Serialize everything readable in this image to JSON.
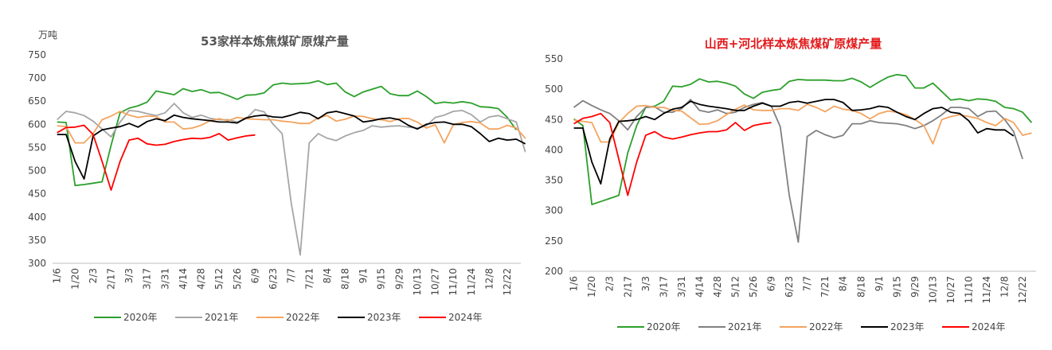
{
  "chart_data": [
    {
      "type": "line",
      "title": "53家样本炼焦煤矿原煤产量",
      "unit_label": "万吨",
      "xlabel": "",
      "ylabel": "",
      "ylim": [
        300,
        750
      ],
      "y_ticks": [
        300,
        350,
        400,
        450,
        500,
        550,
        600,
        650,
        700,
        750
      ],
      "x_ticks": [
        "1/6",
        "1/20",
        "2/3",
        "2/17",
        "3/3",
        "3/17",
        "3/31",
        "4/14",
        "4/28",
        "5/12",
        "5/26",
        "6/9",
        "6/23",
        "7/7",
        "7/21",
        "8/4",
        "8/18",
        "9/1",
        "9/15",
        "9/29",
        "10/13",
        "10/27",
        "11/10",
        "11/24",
        "12/8",
        "12/22"
      ],
      "grid": false,
      "legend_position": "bottom",
      "series": [
        {
          "name": "2020年",
          "color": "#2ca02c",
          "values": [
            605,
            604,
            468,
            470,
            473,
            476,
            555,
            625,
            635,
            640,
            648,
            672,
            668,
            664,
            677,
            671,
            675,
            668,
            669,
            662,
            654,
            663,
            664,
            668,
            685,
            689,
            687,
            688,
            689,
            694,
            686,
            689,
            670,
            660,
            670,
            676,
            682,
            666,
            662,
            662,
            672,
            660,
            645,
            648,
            646,
            649,
            646,
            638,
            637,
            634,
            615,
            588
          ]
        },
        {
          "name": "2021年",
          "color": "#a6a6a6",
          "values": [
            610,
            628,
            625,
            619,
            607,
            590,
            573,
            605,
            630,
            628,
            623,
            619,
            625,
            645,
            625,
            615,
            620,
            613,
            610,
            610,
            605,
            612,
            632,
            627,
            600,
            580,
            430,
            318,
            560,
            580,
            570,
            565,
            575,
            582,
            587,
            597,
            594,
            596,
            597,
            594,
            592,
            597,
            615,
            620,
            628,
            630,
            621,
            605,
            616,
            619,
            612,
            605,
            540
          ]
        },
        {
          "name": "2022年",
          "color": "#f4a460",
          "values": [
            597,
            595,
            560,
            560,
            580,
            610,
            618,
            628,
            620,
            615,
            618,
            617,
            605,
            605,
            590,
            592,
            598,
            608,
            612,
            608,
            615,
            612,
            611,
            610,
            610,
            607,
            605,
            602,
            602,
            614,
            619,
            607,
            611,
            618,
            617,
            612,
            610,
            606,
            612,
            613,
            605,
            592,
            599,
            560,
            599,
            604,
            606,
            603,
            590,
            590,
            598,
            592,
            570,
            572
          ]
        },
        {
          "name": "2023年",
          "color": "#000000",
          "values": [
            578,
            578,
            520,
            482,
            575,
            588,
            592,
            595,
            602,
            594,
            606,
            612,
            608,
            620,
            615,
            612,
            610,
            608,
            605,
            605,
            603,
            614,
            618,
            620,
            616,
            615,
            620,
            626,
            623,
            612,
            625,
            628,
            623,
            618,
            605,
            608,
            612,
            614,
            610,
            598,
            590,
            600,
            604,
            605,
            600,
            600,
            595,
            580,
            563,
            570,
            566,
            568,
            558
          ]
        },
        {
          "name": "2024年",
          "color": "#ff0000",
          "values": [
            582,
            593,
            594,
            598,
            578,
            520,
            458,
            520,
            566,
            570,
            558,
            555,
            557,
            563,
            567,
            570,
            569,
            572,
            580,
            566,
            571,
            575,
            577
          ]
        }
      ]
    },
    {
      "type": "line",
      "title": "山西+河北样本炼焦煤矿原煤产量",
      "unit_label": "",
      "xlabel": "",
      "ylabel": "",
      "ylim": [
        200,
        550
      ],
      "y_ticks": [
        200,
        250,
        300,
        350,
        400,
        450,
        500,
        550
      ],
      "x_ticks": [
        "1/6",
        "1/20",
        "2/3",
        "2/17",
        "3/3",
        "3/17",
        "3/31",
        "4/14",
        "4/28",
        "5/12",
        "5/26",
        "6/9",
        "6/23",
        "7/7",
        "7/21",
        "8/4",
        "8/18",
        "9/1",
        "9/15",
        "9/29",
        "10/13",
        "10/27",
        "11/10",
        "11/24",
        "12/8",
        "12/22"
      ],
      "grid": false,
      "legend_position": "bottom",
      "series": [
        {
          "name": "2020年",
          "color": "#2ca02c",
          "values": [
            451,
            440,
            310,
            315,
            320,
            325,
            395,
            440,
            470,
            472,
            480,
            505,
            504,
            508,
            517,
            512,
            513,
            510,
            505,
            492,
            485,
            495,
            498,
            500,
            513,
            516,
            515,
            515,
            515,
            514,
            514,
            518,
            512,
            503,
            512,
            520,
            524,
            522,
            502,
            502,
            510,
            496,
            482,
            484,
            481,
            484,
            483,
            480,
            470,
            468,
            462,
            445
          ]
        },
        {
          "name": "2021年",
          "color": "#808080",
          "values": [
            470,
            481,
            473,
            466,
            460,
            448,
            433,
            455,
            470,
            471,
            462,
            462,
            468,
            483,
            465,
            462,
            466,
            460,
            462,
            470,
            475,
            478,
            472,
            438,
            325,
            248,
            422,
            432,
            425,
            420,
            424,
            443,
            443,
            448,
            445,
            444,
            443,
            440,
            435,
            440,
            448,
            458,
            470,
            470,
            468,
            455,
            463,
            464,
            450,
            430,
            385
          ]
        },
        {
          "name": "2022年",
          "color": "#f4a460",
          "values": [
            449,
            447,
            445,
            413,
            413,
            445,
            460,
            472,
            473,
            470,
            470,
            465,
            464,
            453,
            442,
            443,
            448,
            458,
            467,
            474,
            466,
            465,
            465,
            468,
            468,
            465,
            475,
            470,
            463,
            472,
            467,
            465,
            460,
            451,
            460,
            464,
            462,
            458,
            450,
            440,
            410,
            450,
            455,
            458,
            455,
            452,
            445,
            440,
            452,
            445,
            424,
            428
          ]
        },
        {
          "name": "2023年",
          "color": "#000000",
          "values": [
            436,
            436,
            380,
            344,
            418,
            447,
            448,
            450,
            455,
            450,
            460,
            467,
            470,
            480,
            475,
            472,
            470,
            468,
            465,
            465,
            472,
            477,
            472,
            472,
            478,
            480,
            477,
            480,
            483,
            483,
            478,
            465,
            466,
            468,
            472,
            470,
            462,
            455,
            450,
            460,
            468,
            470,
            462,
            460,
            448,
            428,
            435,
            433,
            433,
            423
          ]
        },
        {
          "name": "2024年",
          "color": "#ff0000",
          "values": [
            443,
            452,
            455,
            460,
            445,
            385,
            325,
            380,
            424,
            430,
            421,
            418,
            421,
            425,
            428,
            430,
            430,
            433,
            445,
            432,
            440,
            443,
            445
          ]
        }
      ]
    }
  ]
}
